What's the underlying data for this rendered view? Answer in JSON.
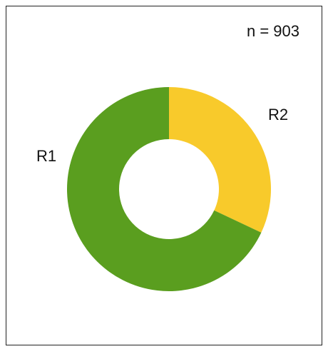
{
  "chart_data": {
    "type": "donut",
    "annotation": "n = 903",
    "categories": [
      "R1",
      "R2"
    ],
    "values": [
      68,
      32
    ],
    "colors": [
      "#5a9e1f",
      "#f8ca2b"
    ]
  }
}
